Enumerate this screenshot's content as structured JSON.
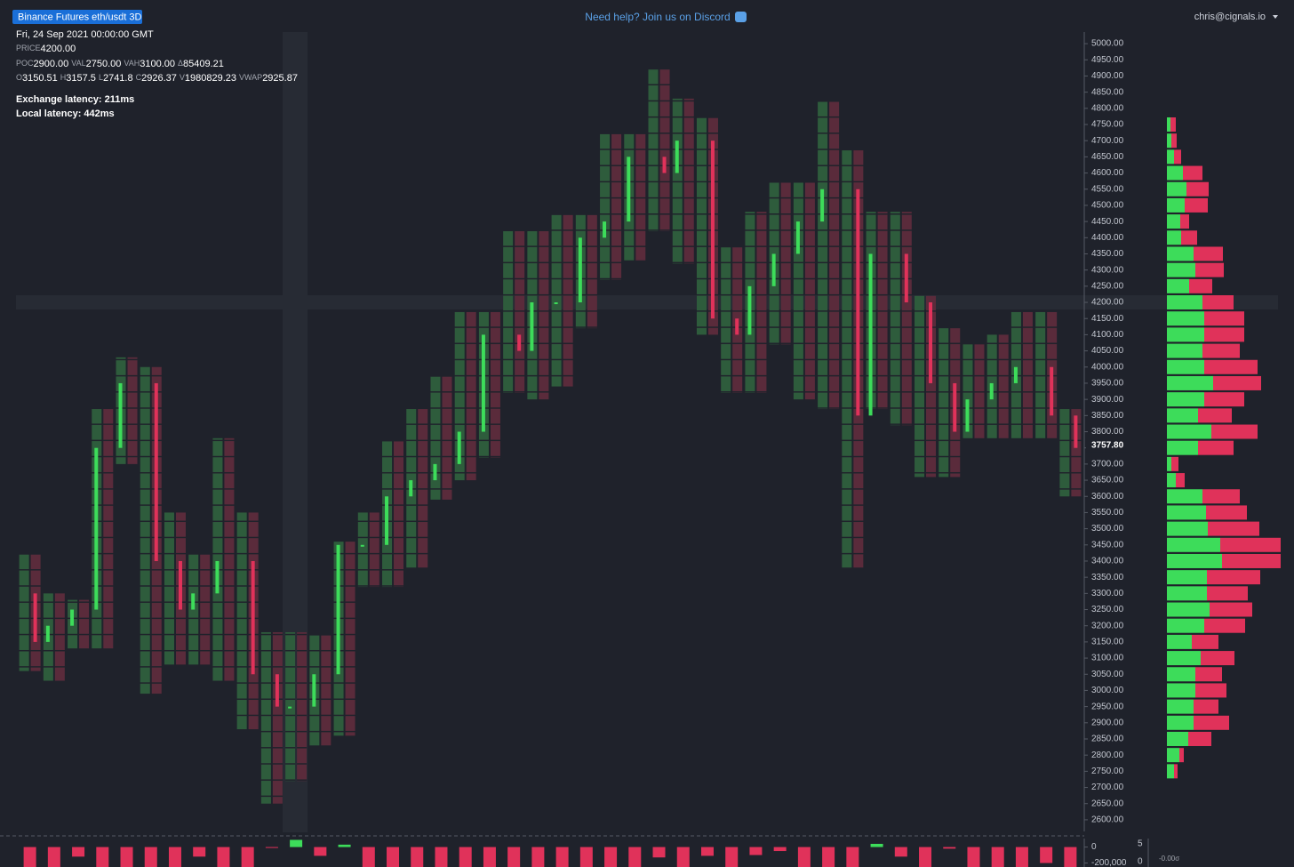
{
  "header": {
    "badge": "Binance Futures eth/usdt 3D",
    "help": "Need help? Join us on Discord",
    "user": "chris@cignals.io"
  },
  "info": {
    "date": "Fri, 24 Sep 2021 00:00:00 GMT",
    "line1": [
      [
        "PRICE",
        "4200.00"
      ]
    ],
    "line2": [
      [
        "POC",
        "2900.00"
      ],
      [
        "VAL",
        "2750.00"
      ],
      [
        "VAH",
        "3100.00"
      ],
      [
        "Δ",
        "85409.21"
      ]
    ],
    "line3": [
      [
        "O",
        "3150.51"
      ],
      [
        "H",
        "3157.5"
      ],
      [
        "L",
        "2741.8"
      ],
      [
        "C",
        "2926.37"
      ],
      [
        "V",
        "1980829.23"
      ],
      [
        "VWAP",
        "2925.87"
      ]
    ],
    "exchange_latency": "Exchange latency: 211ms",
    "local_latency": "Local latency: 442ms"
  },
  "chart_data": {
    "type": "footprint",
    "ylim": [
      2575,
      5025
    ],
    "yticks": [
      {
        "value": 2600,
        "label": "2600.00"
      },
      {
        "value": 2650,
        "label": "2650.00"
      },
      {
        "value": 2700,
        "label": "2700.00"
      },
      {
        "value": 2750,
        "label": "2750.00"
      },
      {
        "value": 2800,
        "label": "2800.00"
      },
      {
        "value": 2850,
        "label": "2850.00"
      },
      {
        "value": 2900,
        "label": "2900.00"
      },
      {
        "value": 2950,
        "label": "2950.00"
      },
      {
        "value": 3000,
        "label": "3000.00"
      },
      {
        "value": 3050,
        "label": "3050.00"
      },
      {
        "value": 3100,
        "label": "3100.00"
      },
      {
        "value": 3150,
        "label": "3150.00"
      },
      {
        "value": 3200,
        "label": "3200.00"
      },
      {
        "value": 3250,
        "label": "3250.00"
      },
      {
        "value": 3300,
        "label": "3300.00"
      },
      {
        "value": 3350,
        "label": "3350.00"
      },
      {
        "value": 3400,
        "label": "3400.00"
      },
      {
        "value": 3450,
        "label": "3450.00"
      },
      {
        "value": 3500,
        "label": "3500.00"
      },
      {
        "value": 3550,
        "label": "3550.00"
      },
      {
        "value": 3600,
        "label": "3600.00"
      },
      {
        "value": 3650,
        "label": "3650.00"
      },
      {
        "value": 3700,
        "label": "3700.00"
      },
      {
        "value": 3750,
        "label": "3750.00"
      },
      {
        "value": 3800,
        "label": "3800.00"
      },
      {
        "value": 3850,
        "label": "3850.00"
      },
      {
        "value": 3900,
        "label": "3900.00"
      },
      {
        "value": 3950,
        "label": "3950.00"
      },
      {
        "value": 4000,
        "label": "4000.00"
      },
      {
        "value": 4050,
        "label": "4050.00"
      },
      {
        "value": 4100,
        "label": "4100.00"
      },
      {
        "value": 4150,
        "label": "4150.00"
      },
      {
        "value": 4200,
        "label": "4200.00"
      },
      {
        "value": 4250,
        "label": "4250.00"
      },
      {
        "value": 4300,
        "label": "4300.00"
      },
      {
        "value": 4350,
        "label": "4350.00"
      },
      {
        "value": 4400,
        "label": "4400.00"
      },
      {
        "value": 4450,
        "label": "4450.00"
      },
      {
        "value": 4500,
        "label": "4500.00"
      },
      {
        "value": 4550,
        "label": "4550.00"
      },
      {
        "value": 4600,
        "label": "4600.00"
      },
      {
        "value": 4650,
        "label": "4650.00"
      },
      {
        "value": 4700,
        "label": "4700.00"
      },
      {
        "value": 4750,
        "label": "4750.00"
      },
      {
        "value": 4800,
        "label": "4800.00"
      },
      {
        "value": 4850,
        "label": "4850.00"
      },
      {
        "value": 4900,
        "label": "4900.00"
      },
      {
        "value": 4950,
        "label": "4950.00"
      },
      {
        "value": 5000,
        "label": "5000.00"
      }
    ],
    "last_price": {
      "value": 3757.8,
      "label": "3757.80"
    },
    "open": [
      3300,
      3150,
      3200,
      3250,
      3750,
      3950,
      3400,
      3250,
      3300,
      3400,
      3050,
      2950,
      2950,
      3050,
      3450,
      3450,
      3600,
      3650,
      3700,
      3800,
      4100,
      4050,
      4200,
      4200,
      4400,
      4450,
      4650,
      4600,
      4700,
      4150,
      4100,
      4250,
      4350,
      4450,
      4550,
      3850,
      4350,
      4200,
      3950,
      3800,
      3900,
      3950,
      4000,
      3850
    ],
    "high": [
      3420,
      3300,
      3280,
      3870,
      4030,
      4000,
      3550,
      3420,
      3780,
      3550,
      3180,
      3180,
      3170,
      3460,
      3550,
      3770,
      3870,
      3970,
      4170,
      4170,
      4420,
      4420,
      4470,
      4470,
      4720,
      4720,
      4920,
      4830,
      4770,
      4370,
      4480,
      4570,
      4570,
      4820,
      4670,
      4480,
      4480,
      4220,
      4120,
      4070,
      4100,
      4170,
      4170,
      3870
    ],
    "low": [
      3060,
      3030,
      3130,
      3130,
      3700,
      2990,
      3080,
      3080,
      3030,
      2880,
      2650,
      2720,
      2830,
      2860,
      3320,
      3320,
      3380,
      3590,
      3650,
      3720,
      3920,
      3900,
      3940,
      4120,
      4270,
      4330,
      4420,
      4320,
      4100,
      3920,
      3920,
      4070,
      3900,
      3870,
      3380,
      3870,
      3820,
      3660,
      3660,
      3780,
      3780,
      3780,
      3780,
      3600
    ],
    "close": [
      3150,
      3200,
      3250,
      3750,
      3950,
      3400,
      3250,
      3300,
      3400,
      3050,
      2950,
      2950,
      3050,
      3450,
      3450,
      3600,
      3650,
      3700,
      3800,
      4100,
      4050,
      4200,
      4200,
      4400,
      4450,
      4650,
      4600,
      4700,
      4150,
      4100,
      4250,
      4350,
      4450,
      4550,
      3850,
      4350,
      4200,
      3950,
      3800,
      3900,
      3950,
      4000,
      3850,
      3750
    ],
    "profile": {
      "levels": [
        2750,
        2800,
        2850,
        2900,
        2950,
        3000,
        3050,
        3100,
        3150,
        3200,
        3250,
        3300,
        3350,
        3400,
        3450,
        3500,
        3550,
        3600,
        3650,
        3700,
        3750,
        3800,
        3850,
        3900,
        3950,
        4000,
        4050,
        4100,
        4150,
        4200,
        4250,
        4300,
        4350,
        4400,
        4450,
        4500,
        4550,
        4600,
        4650,
        4700,
        4750
      ],
      "buy": [
        8,
        14,
        24,
        30,
        30,
        32,
        32,
        38,
        28,
        42,
        48,
        45,
        45,
        62,
        60,
        46,
        44,
        40,
        10,
        5,
        35,
        50,
        35,
        42,
        52,
        42,
        40,
        42,
        42,
        40,
        25,
        32,
        30,
        16,
        15,
        20,
        22,
        18,
        8,
        5,
        4
      ],
      "sell": [
        4,
        5,
        26,
        40,
        28,
        35,
        30,
        38,
        30,
        46,
        48,
        46,
        60,
        66,
        68,
        58,
        46,
        42,
        10,
        8,
        40,
        52,
        38,
        45,
        54,
        60,
        42,
        45,
        45,
        35,
        26,
        32,
        33,
        18,
        10,
        26,
        25,
        22,
        8,
        6,
        6
      ],
      "buy_color": "#3ddc5a",
      "sell_color": "#e0325a",
      "side_ticks": [
        5,
        0
      ],
      "sigma_label": "-0.00σ"
    },
    "delta": {
      "values": [
        -250000,
        -250000,
        -120000,
        -250000,
        -250000,
        -250000,
        -250000,
        -120000,
        -250000,
        -250000,
        -5000,
        90000,
        -110000,
        30000,
        -250000,
        -250000,
        -250000,
        -250000,
        -250000,
        -250000,
        -250000,
        -250000,
        -250000,
        -250000,
        -250000,
        -250000,
        -130000,
        -250000,
        -110000,
        -250000,
        -100000,
        -50000,
        -250000,
        -250000,
        -250000,
        40000,
        -120000,
        -250000,
        -20000,
        -250000,
        -250000,
        -250000,
        -200000,
        -250000
      ],
      "ylim": [
        -250000,
        140000
      ],
      "yticks": [
        {
          "value": -200000,
          "label": "-200,000"
        },
        0
      ]
    },
    "up_color": "#3ddc5a",
    "down_color": "#e0325a"
  }
}
